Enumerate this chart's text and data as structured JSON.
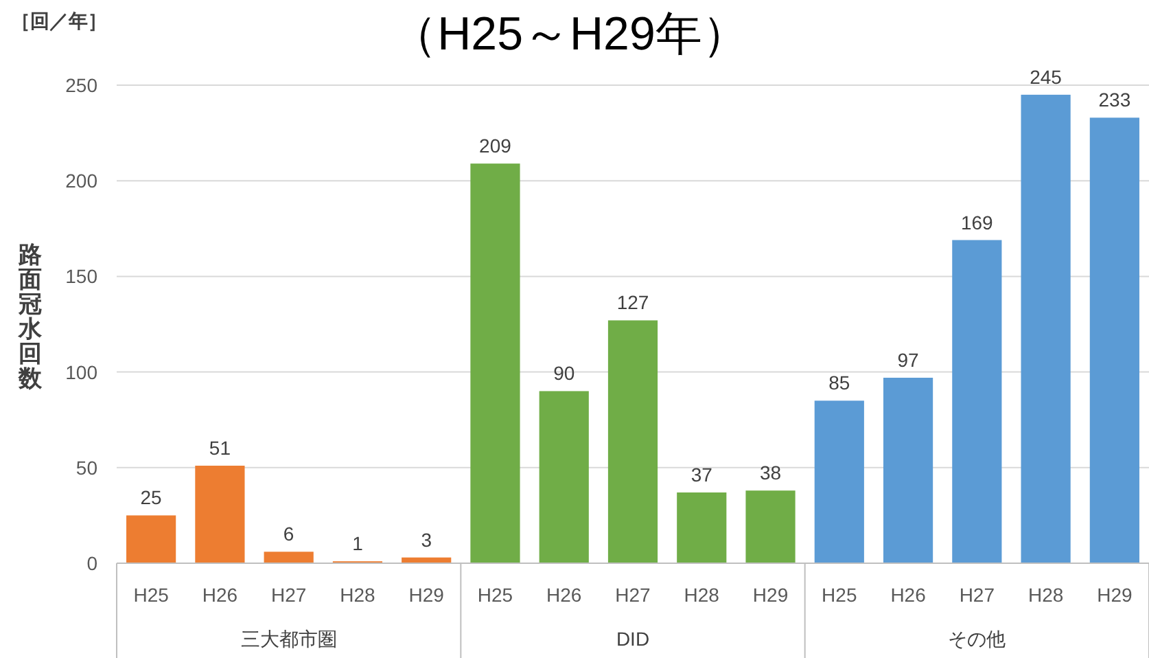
{
  "chart_data": {
    "type": "bar",
    "title": "（H25～H29年）",
    "ylabel": "路面冠水回数",
    "annotations": [
      "［回／年］",
      "三大都市圏",
      "DID",
      "その他"
    ],
    "categories": [
      "H25",
      "H26",
      "H27",
      "H28",
      "H29",
      "H25",
      "H26",
      "H27",
      "H28",
      "H29",
      "H25",
      "H26",
      "H27",
      "H28",
      "H29"
    ],
    "values": [
      25,
      51,
      6,
      1,
      3,
      209,
      90,
      127,
      37,
      38,
      85,
      97,
      169,
      245,
      233
    ],
    "colors": [
      "#ed7d31",
      "#ed7d31",
      "#ed7d31",
      "#ed7d31",
      "#ed7d31",
      "#70ad47",
      "#70ad47",
      "#70ad47",
      "#70ad47",
      "#70ad47",
      "#5b9bd5",
      "#5b9bd5",
      "#5b9bd5",
      "#5b9bd5",
      "#5b9bd5"
    ],
    "ylim": [
      0,
      250
    ],
    "yticks": [
      0,
      50,
      100,
      150,
      200,
      250
    ],
    "grid": "y",
    "data_labels": true
  }
}
